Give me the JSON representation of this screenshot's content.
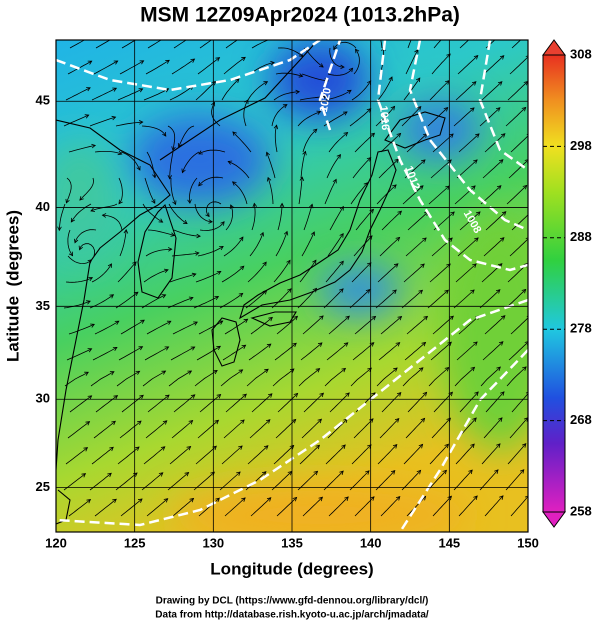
{
  "title": "MSM 12Z09Apr2024 (1013.2hPa)",
  "x_axis": {
    "label": "Longitude (degrees)",
    "lim": [
      120,
      150
    ],
    "ticks": [
      120,
      125,
      130,
      135,
      140,
      145,
      150
    ]
  },
  "y_axis": {
    "label": "Latitude  (degrees)",
    "projection": "mercator",
    "lim": [
      22.4,
      47.7
    ],
    "ticks": [
      25,
      30,
      35,
      40,
      45
    ]
  },
  "colorbar": {
    "lim": [
      258,
      308
    ],
    "ticks": [
      258,
      268,
      278,
      288,
      298,
      308
    ]
  },
  "contour_labels": [
    1020,
    1016,
    1012,
    1008
  ],
  "credits": [
    "Drawing by DCL (https://www.gfd-dennou.org/library/dcl/)",
    "Data from http://database.rish.kyoto-u.ac.jp/arch/jmadata/"
  ]
}
